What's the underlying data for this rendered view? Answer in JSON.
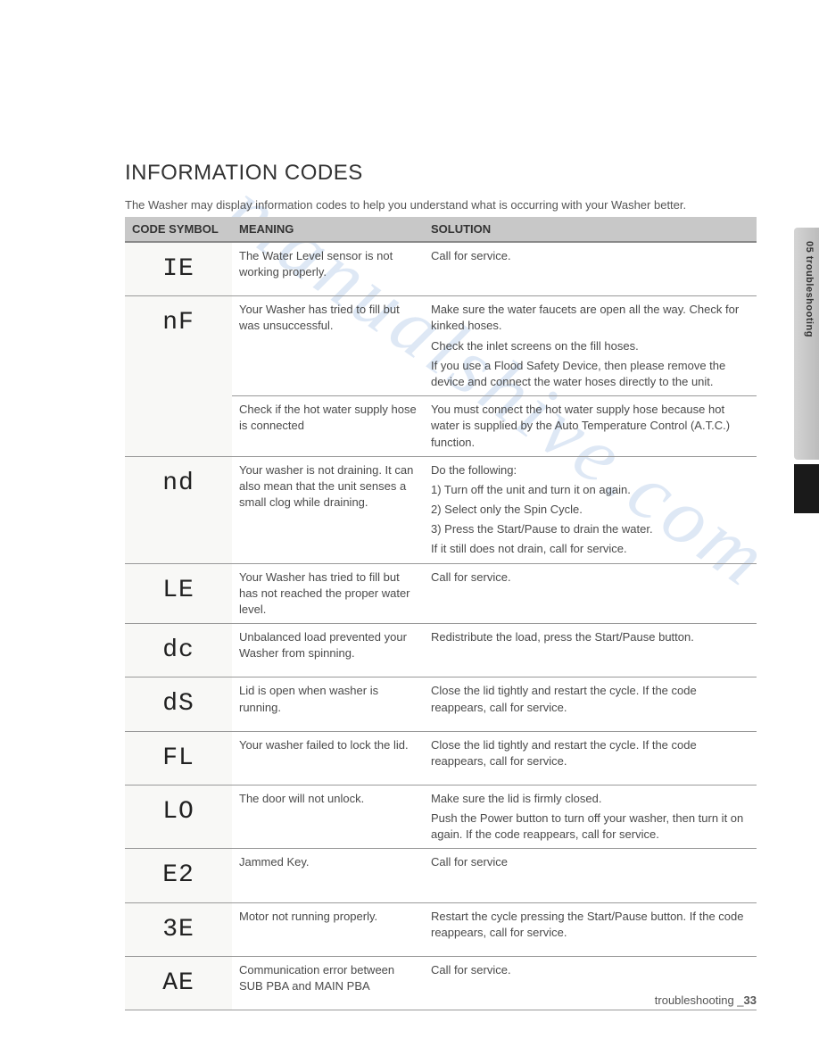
{
  "title": "INFORMATION CODES",
  "intro": "The Washer may display information codes to help you understand what is occurring with your Washer better.",
  "headers": {
    "code": "CODE SYMBOL",
    "meaning": "MEANING",
    "solution": "SOLUTION"
  },
  "rows": [
    {
      "code": "IE",
      "meaning": "The Water Level sensor is not working properly.",
      "solution": [
        "Call for service."
      ],
      "rowspan": 1
    },
    {
      "code": "nF",
      "meaning": "Your Washer has tried to fill but was unsuccessful.",
      "solution": [
        "Make sure the water faucets are open all the way. Check for kinked hoses.",
        "Check the inlet screens on the fill hoses.",
        "If you use a Flood Safety Device, then please remove the device and connect the water hoses directly to the unit."
      ],
      "rowspan": 2
    },
    {
      "code": null,
      "meaning": "Check if the hot water supply hose is connected",
      "solution": [
        "You must connect the hot water supply hose because hot water is supplied by the Auto Temperature Control (A.T.C.) function."
      ],
      "rowspan": 0
    },
    {
      "code": "nd",
      "meaning": "Your washer is not draining. It can also mean that the unit senses a small clog while draining.",
      "solution": [
        "Do the following:",
        "1) Turn off the unit and turn it on again.",
        "2) Select only the Spin Cycle.",
        "3) Press the Start/Pause to drain the water.",
        "If it still does not drain, call for service."
      ],
      "rowspan": 1
    },
    {
      "code": "LE",
      "meaning": "Your Washer has tried to fill but has not reached the proper water level.",
      "solution": [
        "Call for service."
      ],
      "rowspan": 1
    },
    {
      "code": "dc",
      "meaning": "Unbalanced load prevented your Washer from spinning.",
      "solution": [
        "Redistribute the load, press the Start/Pause button."
      ],
      "rowspan": 1
    },
    {
      "code": "dS",
      "meaning": "Lid is open when washer is running.",
      "solution": [
        "Close the lid tightly and restart the cycle. If the code reappears, call for service."
      ],
      "rowspan": 1
    },
    {
      "code": "FL",
      "meaning": "Your washer failed to lock the lid.",
      "solution": [
        "Close the lid tightly and restart the cycle. If the code reappears, call for service."
      ],
      "rowspan": 1
    },
    {
      "code": "LO",
      "meaning": "The door will not unlock.",
      "solution": [
        "Make sure the lid is firmly closed.",
        "Push the Power button to turn off your washer, then turn it on again. If the code reappears, call for service."
      ],
      "rowspan": 1
    },
    {
      "code": "E2",
      "meaning": "Jammed Key.",
      "solution": [
        "Call for service"
      ],
      "rowspan": 1
    },
    {
      "code": "3E",
      "meaning": "Motor not running properly.",
      "solution": [
        "Restart the cycle pressing the Start/Pause button. If the code reappears, call for service."
      ],
      "rowspan": 1
    },
    {
      "code": "AE",
      "meaning": "Communication error between SUB PBA and MAIN PBA",
      "solution": [
        "Call for service."
      ],
      "rowspan": 1
    }
  ],
  "side_tab": "05 troubleshooting",
  "footer": {
    "text": "troubleshooting _",
    "page": "33"
  },
  "watermark": "manualshive.com"
}
